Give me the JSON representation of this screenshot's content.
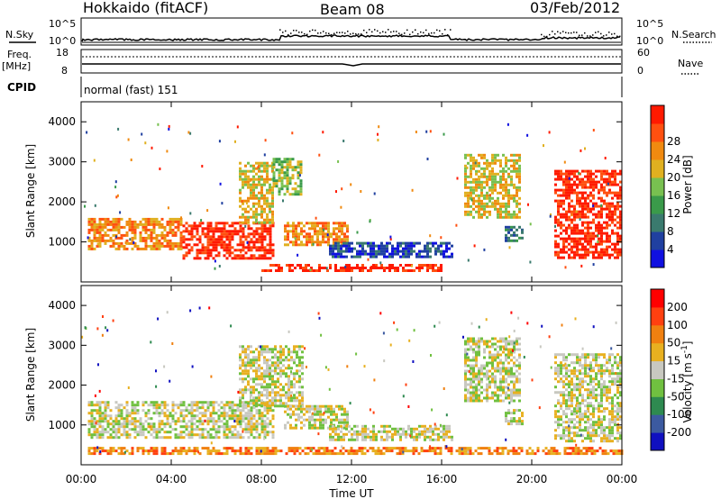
{
  "header": {
    "station": "Hokkaido (fitACF)",
    "beam": "Beam 08",
    "date": "03/Feb/2012"
  },
  "summary_panels": {
    "nsky_label": "N.Sky",
    "nsearch_label": "N.Search",
    "noise_ticks": [
      "10^5",
      "10^0"
    ],
    "freq_label": "Freq.",
    "freq_unit": "[MHz]",
    "freq_ticks": [
      "18",
      "8"
    ],
    "nave_label": "Nave",
    "nave_ticks": [
      "60",
      "0"
    ],
    "cpid_label": "CPID",
    "cpid_text": "normal (fast) 151"
  },
  "chart_data": [
    {
      "type": "heatmap",
      "name": "Power",
      "ylabel": "Slant Range [km]",
      "xlabel": "",
      "yticks": [
        1000,
        2000,
        3000,
        4000
      ],
      "xticks": [
        "00:00",
        "04:00",
        "08:00",
        "12:00",
        "16:00",
        "20:00",
        "00:00"
      ],
      "colorbar": {
        "label": "Power [dB]",
        "ticks": [
          "4",
          "8",
          "12",
          "16",
          "20",
          "24",
          "28"
        ],
        "colors": [
          "#1010e0",
          "#2040a0",
          "#3a7a6e",
          "#3a9a4a",
          "#78c050",
          "#e0b020",
          "#f08a10",
          "#ff5010",
          "#ff1a00"
        ]
      },
      "regions": [
        {
          "t0": 0.3,
          "t1": 4.5,
          "r0": 800,
          "r1": 1600,
          "level": 6
        },
        {
          "t0": 4.5,
          "t1": 8.5,
          "r0": 600,
          "r1": 1500,
          "level": 8
        },
        {
          "t0": 7.0,
          "t1": 8.5,
          "r0": 1500,
          "r1": 3000,
          "level": 5
        },
        {
          "t0": 8.5,
          "t1": 9.8,
          "r0": 2200,
          "r1": 3100,
          "level": 4
        },
        {
          "t0": 9.0,
          "t1": 11.8,
          "r0": 900,
          "r1": 1500,
          "level": 6
        },
        {
          "t0": 11.0,
          "t1": 16.5,
          "r0": 600,
          "r1": 1000,
          "level": 1
        },
        {
          "t0": 8.0,
          "t1": 16.0,
          "r0": 250,
          "r1": 450,
          "level": 8
        },
        {
          "t0": 17.0,
          "t1": 19.5,
          "r0": 1600,
          "r1": 3200,
          "level": 5
        },
        {
          "t0": 18.8,
          "t1": 19.6,
          "r0": 1000,
          "r1": 1400,
          "level": 2
        },
        {
          "t0": 21.0,
          "t1": 24.0,
          "r0": 600,
          "r1": 2800,
          "level": 8
        }
      ]
    },
    {
      "type": "heatmap",
      "name": "Velocity",
      "ylabel": "Slant Range [km]",
      "xlabel": "Time UT",
      "yticks": [
        1000,
        2000,
        3000,
        4000
      ],
      "xticks": [
        "00:00",
        "04:00",
        "08:00",
        "12:00",
        "16:00",
        "20:00",
        "00:00"
      ],
      "colorbar": {
        "label": "Velocity [m s",
        "label_sup": "-1",
        "label_end": "]",
        "ticks": [
          "200",
          "100",
          "50",
          "15",
          "-15",
          "-50",
          "-100",
          "-200"
        ],
        "colors": [
          "#1010c0",
          "#3c5aa0",
          "#2e8a50",
          "#70c040",
          "#c8c8c0",
          "#e8b020",
          "#f08010",
          "#ff4010",
          "#ff0000"
        ]
      },
      "regions": [
        {
          "t0": 0.3,
          "t1": 8.5,
          "r0": 700,
          "r1": 1600,
          "level": 4
        },
        {
          "t0": 7.0,
          "t1": 9.8,
          "r0": 1500,
          "r1": 3000,
          "level": 4
        },
        {
          "t0": 9.0,
          "t1": 11.8,
          "r0": 900,
          "r1": 1500,
          "level": 4
        },
        {
          "t0": 11.0,
          "t1": 16.5,
          "r0": 600,
          "r1": 1000,
          "level": 4
        },
        {
          "t0": 0.3,
          "t1": 24.0,
          "r0": 250,
          "r1": 450,
          "level": 6
        },
        {
          "t0": 17.0,
          "t1": 19.5,
          "r0": 1600,
          "r1": 3200,
          "level": 4
        },
        {
          "t0": 18.8,
          "t1": 19.6,
          "r0": 1000,
          "r1": 1400,
          "level": 4
        },
        {
          "t0": 21.0,
          "t1": 24.0,
          "r0": 600,
          "r1": 2800,
          "level": 4
        }
      ]
    }
  ]
}
